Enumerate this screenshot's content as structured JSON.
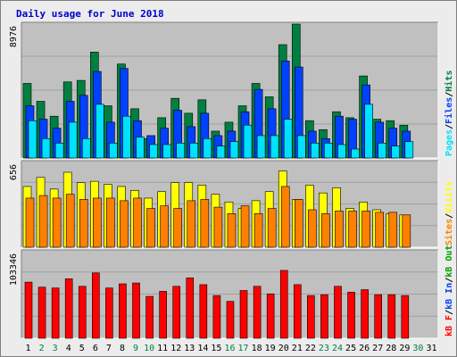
{
  "title": "Daily usage for June 2018",
  "colors": {
    "background": "#ececec",
    "plot_bg": "#c0c0c0",
    "grid": "#a0a0a0",
    "title": "#0000cc",
    "hits": "#008040",
    "files": "#0040ff",
    "pages": "#00e0ff",
    "visits": "#ffff00",
    "sites": "#ff8000",
    "kb_f": "#ff0000",
    "kb_in": "#0040ff",
    "kb_out": "#00a000",
    "day_normal": "#000000",
    "day_weekend": "#008040"
  },
  "chart_data": [
    {
      "type": "bar",
      "title": "Daily usage for June 2018",
      "ylabel_max": "8976",
      "ymax": 8976,
      "series": [
        {
          "name": "Hits",
          "values": [
            5000,
            3800,
            2800,
            5100,
            5200,
            7100,
            3500,
            6300,
            3300,
            1300,
            2700,
            4000,
            3000,
            3900,
            1800,
            2400,
            3500,
            5000,
            4100,
            7600,
            8976,
            2500,
            1900,
            3100,
            2700,
            5500,
            2600,
            2500,
            2200
          ]
        },
        {
          "name": "Files",
          "values": [
            3500,
            2600,
            2000,
            3800,
            4200,
            5800,
            2400,
            6000,
            2500,
            1500,
            2000,
            3200,
            2100,
            3000,
            1500,
            1800,
            3100,
            4600,
            3300,
            6500,
            6100,
            1800,
            1300,
            2800,
            2600,
            4900,
            2400,
            2000,
            1800
          ]
        },
        {
          "name": "Pages",
          "values": [
            2500,
            1300,
            1000,
            2400,
            1300,
            3600,
            1000,
            2800,
            1400,
            900,
            900,
            1000,
            1000,
            1300,
            800,
            1100,
            2200,
            1500,
            1500,
            2600,
            1500,
            1000,
            1000,
            900,
            600,
            3600,
            1000,
            800,
            1100
          ]
        }
      ],
      "legend": [
        "Pages",
        "Files",
        "Hits"
      ]
    },
    {
      "type": "bar",
      "ylabel_max": "656",
      "ymax": 656,
      "series": [
        {
          "name": "Visits",
          "values": [
            470,
            540,
            450,
            580,
            500,
            510,
            485,
            470,
            440,
            380,
            430,
            500,
            500,
            480,
            410,
            350,
            300,
            360,
            430,
            590,
            370,
            480,
            420,
            460,
            300,
            350,
            290,
            260,
            250
          ]
        },
        {
          "name": "Sites",
          "values": [
            380,
            400,
            380,
            410,
            370,
            380,
            380,
            360,
            380,
            300,
            320,
            300,
            360,
            370,
            310,
            260,
            320,
            260,
            300,
            470,
            370,
            290,
            260,
            280,
            280,
            280,
            270,
            270,
            250
          ]
        }
      ],
      "legend": [
        "Sites",
        "Visits"
      ]
    },
    {
      "type": "bar",
      "ylabel_max": "103346",
      "ymax": 103346,
      "series": [
        {
          "name": "kB F",
          "values": [
            67000,
            61000,
            60000,
            71000,
            62000,
            78000,
            60000,
            65000,
            66000,
            50000,
            56000,
            62000,
            72000,
            64000,
            51000,
            44000,
            57000,
            62000,
            53000,
            81000,
            64000,
            51000,
            52000,
            62000,
            55000,
            58000,
            52000,
            52000,
            51000
          ]
        }
      ],
      "legend": [
        "kB F",
        "kB In",
        "kB Out"
      ]
    }
  ],
  "days": [
    {
      "label": "1",
      "weekend": false
    },
    {
      "label": "2",
      "weekend": true
    },
    {
      "label": "3",
      "weekend": true
    },
    {
      "label": "4",
      "weekend": false
    },
    {
      "label": "5",
      "weekend": false
    },
    {
      "label": "6",
      "weekend": false
    },
    {
      "label": "7",
      "weekend": false
    },
    {
      "label": "8",
      "weekend": false
    },
    {
      "label": "9",
      "weekend": true
    },
    {
      "label": "10",
      "weekend": true
    },
    {
      "label": "11",
      "weekend": false
    },
    {
      "label": "12",
      "weekend": false
    },
    {
      "label": "13",
      "weekend": false
    },
    {
      "label": "14",
      "weekend": false
    },
    {
      "label": "15",
      "weekend": false
    },
    {
      "label": "16",
      "weekend": true
    },
    {
      "label": "17",
      "weekend": true
    },
    {
      "label": "18",
      "weekend": false
    },
    {
      "label": "19",
      "weekend": false
    },
    {
      "label": "20",
      "weekend": false
    },
    {
      "label": "21",
      "weekend": false
    },
    {
      "label": "22",
      "weekend": false
    },
    {
      "label": "23",
      "weekend": true
    },
    {
      "label": "24",
      "weekend": true
    },
    {
      "label": "25",
      "weekend": false
    },
    {
      "label": "26",
      "weekend": false
    },
    {
      "label": "27",
      "weekend": false
    },
    {
      "label": "28",
      "weekend": false
    },
    {
      "label": "29",
      "weekend": false
    },
    {
      "label": "30",
      "weekend": true
    },
    {
      "label": "31",
      "weekend": false
    }
  ]
}
